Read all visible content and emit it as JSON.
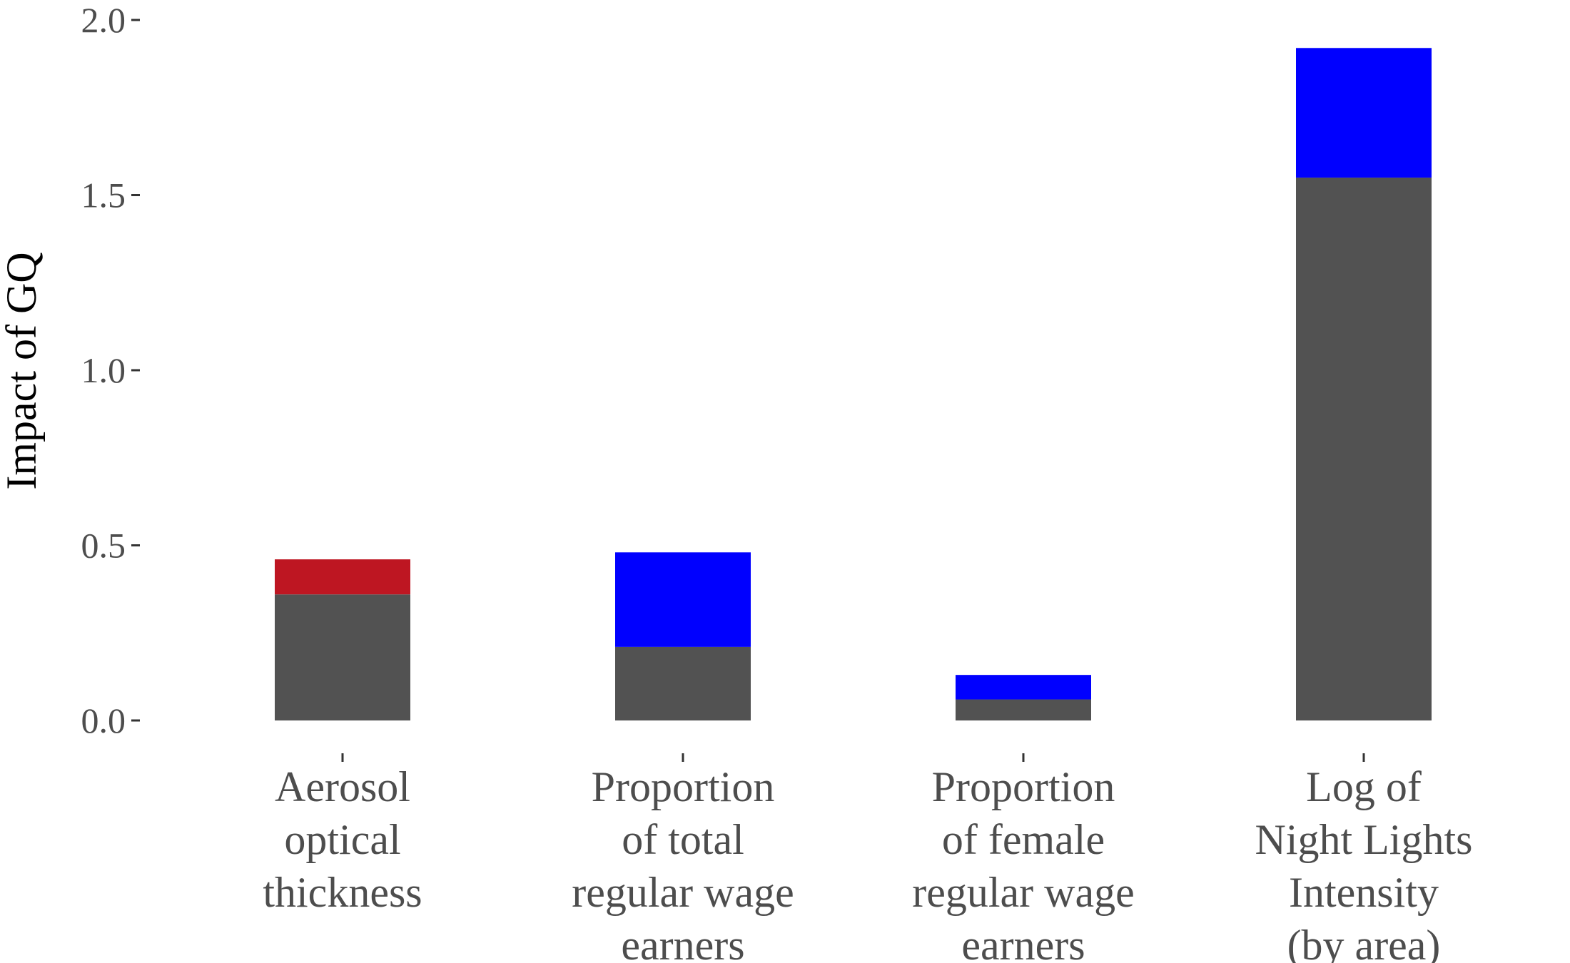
{
  "chart_data": {
    "type": "bar",
    "stacked": true,
    "ylabel": "Impact of GQ",
    "xlabel": "",
    "ylim": [
      0,
      2.0
    ],
    "yticks": [
      "0.0",
      "0.5",
      "1.0",
      "1.5",
      "2.0"
    ],
    "ytick_values": [
      0,
      0.5,
      1.0,
      1.5,
      2.0
    ],
    "grid": false,
    "legend": "none",
    "categories": [
      [
        "Aerosol",
        "optical",
        "thickness"
      ],
      [
        "Proportion",
        "of total",
        "regular wage",
        "earners"
      ],
      [
        "Proportion",
        "of female",
        "regular wage",
        "earners"
      ],
      [
        "Log of",
        "Night Lights",
        "Intensity",
        "(by area)"
      ]
    ],
    "base_values": [
      0.36,
      0.21,
      0.06,
      1.55
    ],
    "top_values": [
      0.1,
      0.27,
      0.07,
      0.37
    ],
    "top_colors": [
      "#be1622",
      "#0000ff",
      "#0000ff",
      "#0000ff"
    ],
    "base_color": "#525252"
  }
}
